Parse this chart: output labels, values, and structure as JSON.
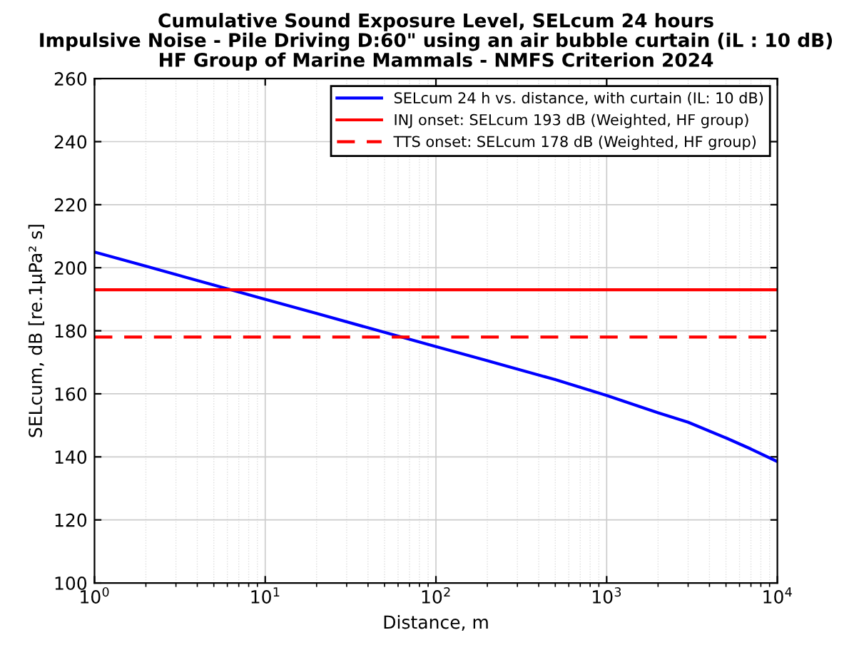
{
  "chart_data": {
    "type": "line",
    "title": "Cumulative Sound Exposure Level, SELcum 24 hours\nImpulsive Noise - Pile Driving D:60\" using an air bubble curtain (iL : 10 dB)\nHF Group of Marine Mammals - NMFS Criterion 2024",
    "xlabel": "Distance, m",
    "ylabel": "SELcum, dB [re.1μPa² s]",
    "log": "x",
    "xlim": [
      1,
      10000
    ],
    "xticks": [
      {
        "value": 1,
        "label": "10$^{0}$"
      },
      {
        "value": 10,
        "label": "10$^{1}$"
      },
      {
        "value": 100,
        "label": "10$^{2}$"
      },
      {
        "value": 1000,
        "label": "10$^{3}$"
      },
      {
        "value": 10000,
        "label": "10$^{4}$"
      }
    ],
    "ylim": [
      100,
      260
    ],
    "yticks": [
      100,
      120,
      140,
      160,
      180,
      200,
      220,
      240,
      260
    ],
    "grid": true,
    "legend": "top right",
    "series": [
      {
        "name": "SELcum 24 h vs. distance, with curtain (IL: 10 dB)",
        "color": "#0000ff",
        "x": [
          1,
          2,
          5,
          10,
          20,
          50,
          100,
          200,
          500,
          1000,
          2000,
          3000,
          5000,
          7000,
          10000
        ],
        "values": [
          205,
          200.5,
          194.5,
          190,
          185.5,
          179.5,
          175,
          170.5,
          164.5,
          159.5,
          154,
          151,
          146,
          142.5,
          138.5
        ]
      },
      {
        "name": "INJ onset: SELcum 193 dB (Weighted, HF group)",
        "color": "#ff0000",
        "x": [
          1,
          10000
        ],
        "values": [
          193,
          193
        ],
        "line_style": "solid"
      },
      {
        "name": "TTS onset: SELcum 178 dB (Weighted, HF group)",
        "color": "#ff0000",
        "x": [
          1,
          10000
        ],
        "values": [
          178,
          178
        ],
        "line_style": "dashed"
      }
    ]
  }
}
